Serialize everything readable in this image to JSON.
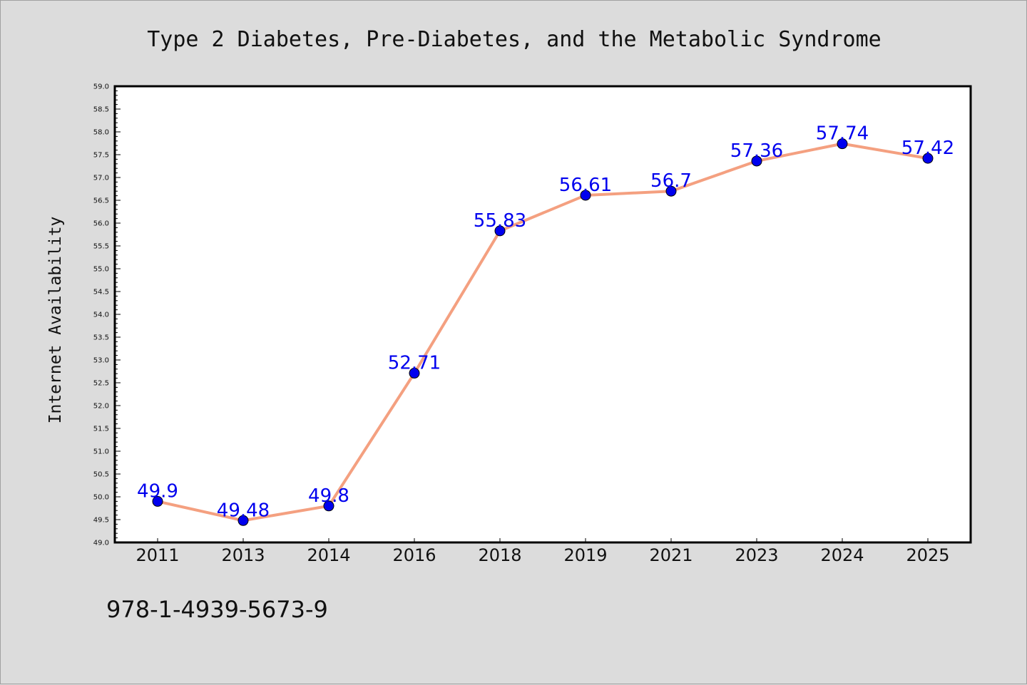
{
  "chart_data": {
    "type": "line",
    "title": "Type 2 Diabetes, Pre-Diabetes, and the Metabolic Syndrome",
    "xlabel": "",
    "ylabel": "Internet Availability",
    "categories": [
      "2011",
      "2013",
      "2014",
      "2016",
      "2018",
      "2019",
      "2021",
      "2023",
      "2024",
      "2025"
    ],
    "series": [
      {
        "values": [
          49.9,
          49.48,
          49.8,
          52.71,
          55.83,
          56.61,
          56.7,
          57.36,
          57.74,
          57.42
        ],
        "labels": [
          "49.9",
          "49.48",
          "49.8",
          "52.71",
          "55.83",
          "56.61",
          "56.7",
          "57.36",
          "57.74",
          "57.42"
        ],
        "line_color": "#f4a080",
        "marker_color": "#0000ee",
        "label_color": "#0000ee"
      }
    ],
    "ylim": [
      49.0,
      59.0
    ],
    "yticks": [
      "49.0",
      "49.5",
      "50.0",
      "50.5",
      "51.0",
      "51.5",
      "52.0",
      "52.5",
      "53.0",
      "53.5",
      "54.0",
      "54.5",
      "55.0",
      "55.5",
      "56.0",
      "56.5",
      "57.0",
      "57.5",
      "58.0",
      "58.5",
      "59.0"
    ],
    "grid": false,
    "legend": "none"
  },
  "footer": {
    "isbn": "978-1-4939-5673-9"
  },
  "colors": {
    "background": "#dcdcdc",
    "plot_background": "#ffffff"
  }
}
